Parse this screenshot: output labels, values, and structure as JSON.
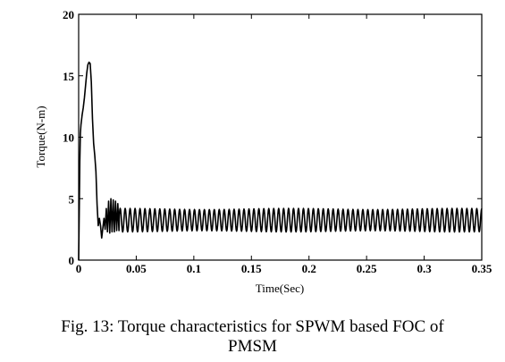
{
  "chart_data": {
    "type": "line",
    "title": "",
    "xlabel": "Time(Sec)",
    "ylabel": "Torque(N-m)",
    "xlim": [
      0,
      0.35
    ],
    "ylim": [
      0,
      20
    ],
    "xticks": [
      0,
      0.05,
      0.1,
      0.15,
      0.2,
      0.25,
      0.3,
      0.35
    ],
    "xtick_labels": [
      "0",
      "0.05",
      "0.1",
      "0.15",
      "0.2",
      "0.25",
      "0.3",
      "0.35"
    ],
    "yticks": [
      0,
      5,
      10,
      15,
      20
    ],
    "ytick_labels": [
      "0",
      "5",
      "10",
      "15",
      "20"
    ],
    "grid": false,
    "series": [
      {
        "name": "",
        "color": "#000000",
        "x": [
          0,
          0.0005,
          0.001,
          0.0015,
          0.002,
          0.003,
          0.004,
          0.005,
          0.006,
          0.007,
          0.008,
          0.009,
          0.01,
          0.011,
          0.012,
          0.013,
          0.014,
          0.015,
          0.016,
          0.017,
          0.018,
          0.019,
          0.02,
          0.021,
          0.022,
          0.023,
          0.024,
          0.025,
          0.026,
          0.027,
          0.028,
          0.029,
          0.03,
          0.031,
          0.032,
          0.033,
          0.034,
          0.035
        ],
        "y": [
          0,
          3.8,
          8,
          10.3,
          11.0,
          11.8,
          12.4,
          13.2,
          14.2,
          15.2,
          15.9,
          16.1,
          16.0,
          14.5,
          11.5,
          9.5,
          8.5,
          7.2,
          4.5,
          2.8,
          3.4,
          2.8,
          1.8,
          2.6,
          3.4,
          2.5,
          4.2,
          2.3,
          4.8,
          2.2,
          5.0,
          2.3,
          4.9,
          2.3,
          4.8,
          2.4,
          4.6,
          2.4
        ]
      }
    ],
    "steady_state_oscillation": {
      "x_start": 0.035,
      "x_end": 0.35,
      "period": 0.0043,
      "y_min": 2.3,
      "y_max": 4.2
    }
  },
  "caption": {
    "line1": "Fig. 13: Torque characteristics for SPWM based FOC of",
    "line2": "PMSM"
  }
}
